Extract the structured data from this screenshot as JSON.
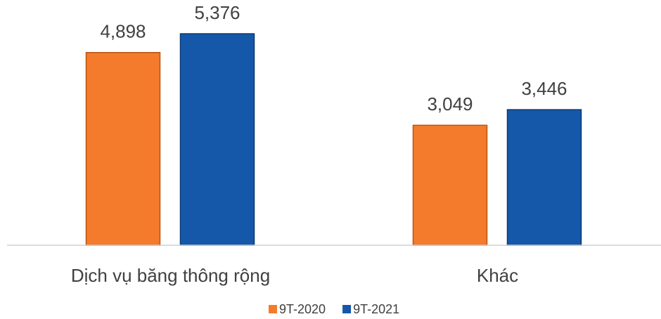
{
  "chart_data": {
    "type": "bar",
    "categories": [
      "Dịch vụ băng thông rộng",
      "Khác"
    ],
    "series": [
      {
        "name": "9T-2020",
        "color": "#f47b2b",
        "values": [
          4898,
          3049
        ],
        "value_labels": [
          "4,898",
          "3,049"
        ]
      },
      {
        "name": "9T-2021",
        "color": "#1557a8",
        "values": [
          5376,
          3446
        ],
        "value_labels": [
          "5,376",
          "3,446"
        ]
      }
    ],
    "legend": "bottom"
  }
}
